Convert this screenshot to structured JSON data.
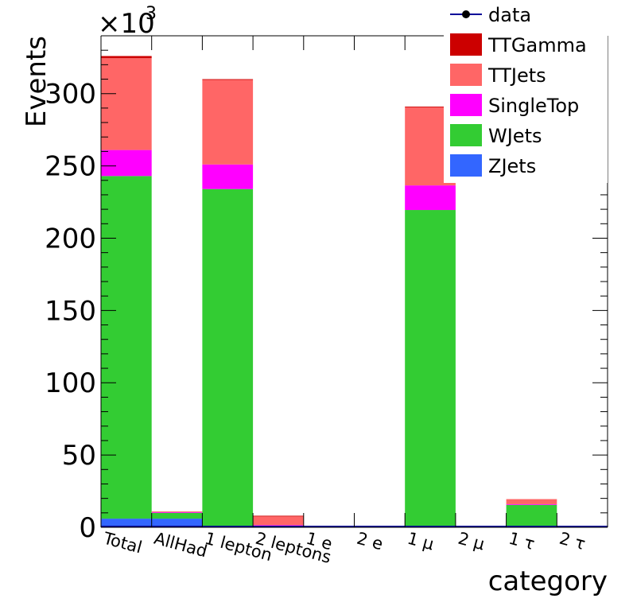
{
  "chart_data": {
    "type": "bar",
    "stacked": true,
    "xlabel": "category",
    "ylabel": "Events",
    "exponent_label": "×10",
    "exponent_power": "3",
    "ylim": [
      0,
      340
    ],
    "yticks": [
      "0",
      "50",
      "100",
      "150",
      "200",
      "250",
      "300"
    ],
    "categories": [
      "Total",
      "AllHad",
      "1 lepton",
      "2 leptons",
      "1 e",
      "2 e",
      "1 μ",
      "2 μ",
      "1 τ",
      "2 τ"
    ],
    "series": [
      {
        "name": "ZJets",
        "color": "#3366ff",
        "values": [
          6.0,
          6.0,
          0.5,
          0,
          0,
          0,
          0.5,
          0,
          0,
          0
        ]
      },
      {
        "name": "WJets",
        "color": "#33cc33",
        "values": [
          237.0,
          4.0,
          233.5,
          0.5,
          0,
          0,
          219.0,
          0,
          15.5,
          0
        ]
      },
      {
        "name": "SingleTop",
        "color": "#ff00ff",
        "values": [
          18.0,
          0.5,
          17.0,
          1.0,
          0,
          0,
          17.0,
          0.5,
          0.5,
          0
        ]
      },
      {
        "name": "TTJets",
        "color": "#ff6666",
        "values": [
          63.5,
          0.5,
          58.5,
          6.0,
          0,
          0,
          54.0,
          0.5,
          3.5,
          0
        ]
      },
      {
        "name": "TTGamma",
        "color": "#cc0000",
        "values": [
          1.5,
          0,
          0.5,
          0.5,
          0,
          0,
          0.5,
          0,
          0,
          0
        ]
      }
    ],
    "legend": [
      "data",
      "TTGamma",
      "TTJets",
      "SingleTop",
      "WJets",
      "ZJets"
    ],
    "legend_position": "top-right",
    "data_marker": {
      "name": "data",
      "color": "#000000",
      "line_color": "#000099"
    },
    "grid": false
  }
}
